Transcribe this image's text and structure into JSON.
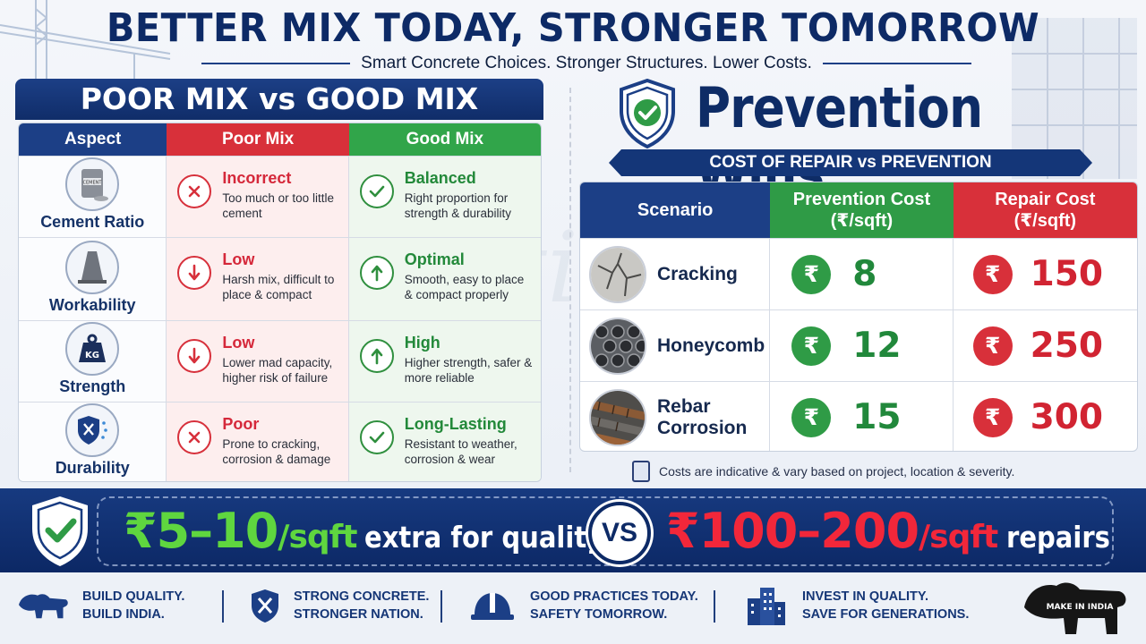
{
  "header": {
    "title": "BETTER MIX TODAY, STRONGER TOMORROW",
    "subtitle": "Smart Concrete Choices. Stronger Structures. Lower Costs."
  },
  "comparison": {
    "title": "POOR MIX vs GOOD MIX",
    "columns": {
      "aspect": "Aspect",
      "poor": "Poor Mix",
      "good": "Good Mix"
    },
    "rows": [
      {
        "aspect": "Cement Ratio",
        "icon": "cement-bag-icon",
        "poor_title": "Incorrect",
        "poor_desc": "Too much or too little cement",
        "poor_mark": "cross",
        "good_title": "Balanced",
        "good_desc": "Right proportion for strength & durability",
        "good_mark": "check"
      },
      {
        "aspect": "Workability",
        "icon": "slump-cone-icon",
        "poor_title": "Low",
        "poor_desc": "Harsh mix, difficult to place & compact",
        "poor_mark": "arrow-down",
        "good_title": "Optimal",
        "good_desc": "Smooth, easy to place & compact properly",
        "good_mark": "arrow-up"
      },
      {
        "aspect": "Strength",
        "icon": "kg-weight-icon",
        "poor_title": "Low",
        "poor_desc": "Lower mad capacity, higher risk of failure",
        "poor_mark": "arrow-down",
        "good_title": "High",
        "good_desc": "Higher strength, safer & more reliable",
        "good_mark": "arrow-up"
      },
      {
        "aspect": "Durability",
        "icon": "shield-rain-icon",
        "poor_title": "Poor",
        "poor_desc": "Prone to cracking, corrosion & damage",
        "poor_mark": "cross",
        "good_title": "Long-Lasting",
        "good_desc": "Resistant to weather, corrosion & wear",
        "good_mark": "check"
      }
    ]
  },
  "prevention": {
    "title": "Prevention Wins",
    "ribbon": "COST OF REPAIR vs PREVENTION",
    "columns": {
      "scenario": "Scenario",
      "prevention": "Prevention Cost\n(₹/sqft)",
      "repair": "Repair Cost\n(₹/sqft)"
    },
    "currency_symbol": "₹",
    "rows": [
      {
        "scenario": "Cracking",
        "prevention": "8",
        "repair": "150"
      },
      {
        "scenario": "Honeycomb",
        "prevention": "12",
        "repair": "250"
      },
      {
        "scenario": "Rebar\nCorrosion",
        "prevention": "15",
        "repair": "300"
      }
    ],
    "note": "Costs are indicative & vary based on project, location & severity."
  },
  "banner": {
    "left_value": "₹5–10",
    "left_unit": "/sqft",
    "left_text": "extra for quality",
    "vs": "VS",
    "right_value": "₹100–200",
    "right_unit": "/sqft",
    "right_text": "repairs"
  },
  "footer": {
    "items": [
      {
        "icon": "lion-icon",
        "text": "BUILD QUALITY.\nBUILD INDIA."
      },
      {
        "icon": "shield-tools-icon",
        "text": "STRONG CONCRETE.\nSTRONGER NATION."
      },
      {
        "icon": "hard-hat-icon",
        "text": "GOOD PRACTICES TODAY.\nSAFETY TOMORROW."
      },
      {
        "icon": "buildings-icon",
        "text": "INVEST IN QUALITY.\nSAVE FOR GENERATIONS."
      }
    ],
    "logo_text": "MAKE IN INDIA"
  },
  "colors": {
    "navy": "#0d2a66",
    "poor_red": "#d8303a",
    "good_green": "#31a54a",
    "banner_green": "#5fd63f",
    "banner_red": "#f2273a"
  }
}
